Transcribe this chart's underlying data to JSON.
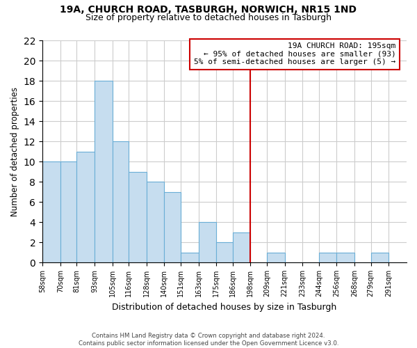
{
  "title_line1": "19A, CHURCH ROAD, TASBURGH, NORWICH, NR15 1ND",
  "title_line2": "Size of property relative to detached houses in Tasburgh",
  "xlabel": "Distribution of detached houses by size in Tasburgh",
  "ylabel": "Number of detached properties",
  "bin_labels": [
    "58sqm",
    "70sqm",
    "81sqm",
    "93sqm",
    "105sqm",
    "116sqm",
    "128sqm",
    "140sqm",
    "151sqm",
    "163sqm",
    "175sqm",
    "186sqm",
    "198sqm",
    "209sqm",
    "221sqm",
    "233sqm",
    "244sqm",
    "256sqm",
    "268sqm",
    "279sqm",
    "291sqm"
  ],
  "bin_edges": [
    58,
    70,
    81,
    93,
    105,
    116,
    128,
    140,
    151,
    163,
    175,
    186,
    198,
    209,
    221,
    233,
    244,
    256,
    268,
    279,
    291,
    303
  ],
  "bar_heights": [
    10,
    10,
    11,
    18,
    12,
    9,
    8,
    7,
    1,
    4,
    2,
    3,
    0,
    1,
    0,
    0,
    1,
    1,
    0,
    1,
    0
  ],
  "bar_color": "#c6ddef",
  "bar_edge_color": "#6aaed6",
  "vline_x": 198,
  "vline_color": "#cc0000",
  "annotation_text": "19A CHURCH ROAD: 195sqm\n← 95% of detached houses are smaller (93)\n5% of semi-detached houses are larger (5) →",
  "ylim": [
    0,
    22
  ],
  "yticks": [
    0,
    2,
    4,
    6,
    8,
    10,
    12,
    14,
    16,
    18,
    20,
    22
  ],
  "footer_text": "Contains HM Land Registry data © Crown copyright and database right 2024.\nContains public sector information licensed under the Open Government Licence v3.0.",
  "background_color": "#ffffff",
  "grid_color": "#cccccc"
}
